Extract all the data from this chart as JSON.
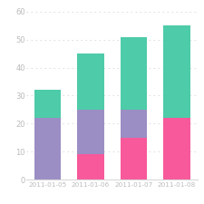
{
  "categories": [
    "2011-01-05",
    "2011-01-06",
    "2011-01-07",
    "2011-01-08"
  ],
  "series": [
    {
      "name": "pink",
      "values": [
        0,
        9,
        15,
        22
      ],
      "color": "#f7599b"
    },
    {
      "name": "purple",
      "values": [
        22,
        16,
        10,
        0
      ],
      "color": "#9b8ec4"
    },
    {
      "name": "teal",
      "values": [
        10,
        20,
        26,
        33
      ],
      "color": "#4ecba8"
    }
  ],
  "ylim": [
    0,
    62
  ],
  "yticks": [
    0,
    10,
    20,
    30,
    40,
    50,
    60
  ],
  "background_color": "#ffffff",
  "grid_color": "#d8d8d8",
  "tick_color": "#bbbbbb",
  "bar_width": 0.62,
  "xlabel_fontsize": 5.2,
  "ylabel_fontsize": 6.0
}
